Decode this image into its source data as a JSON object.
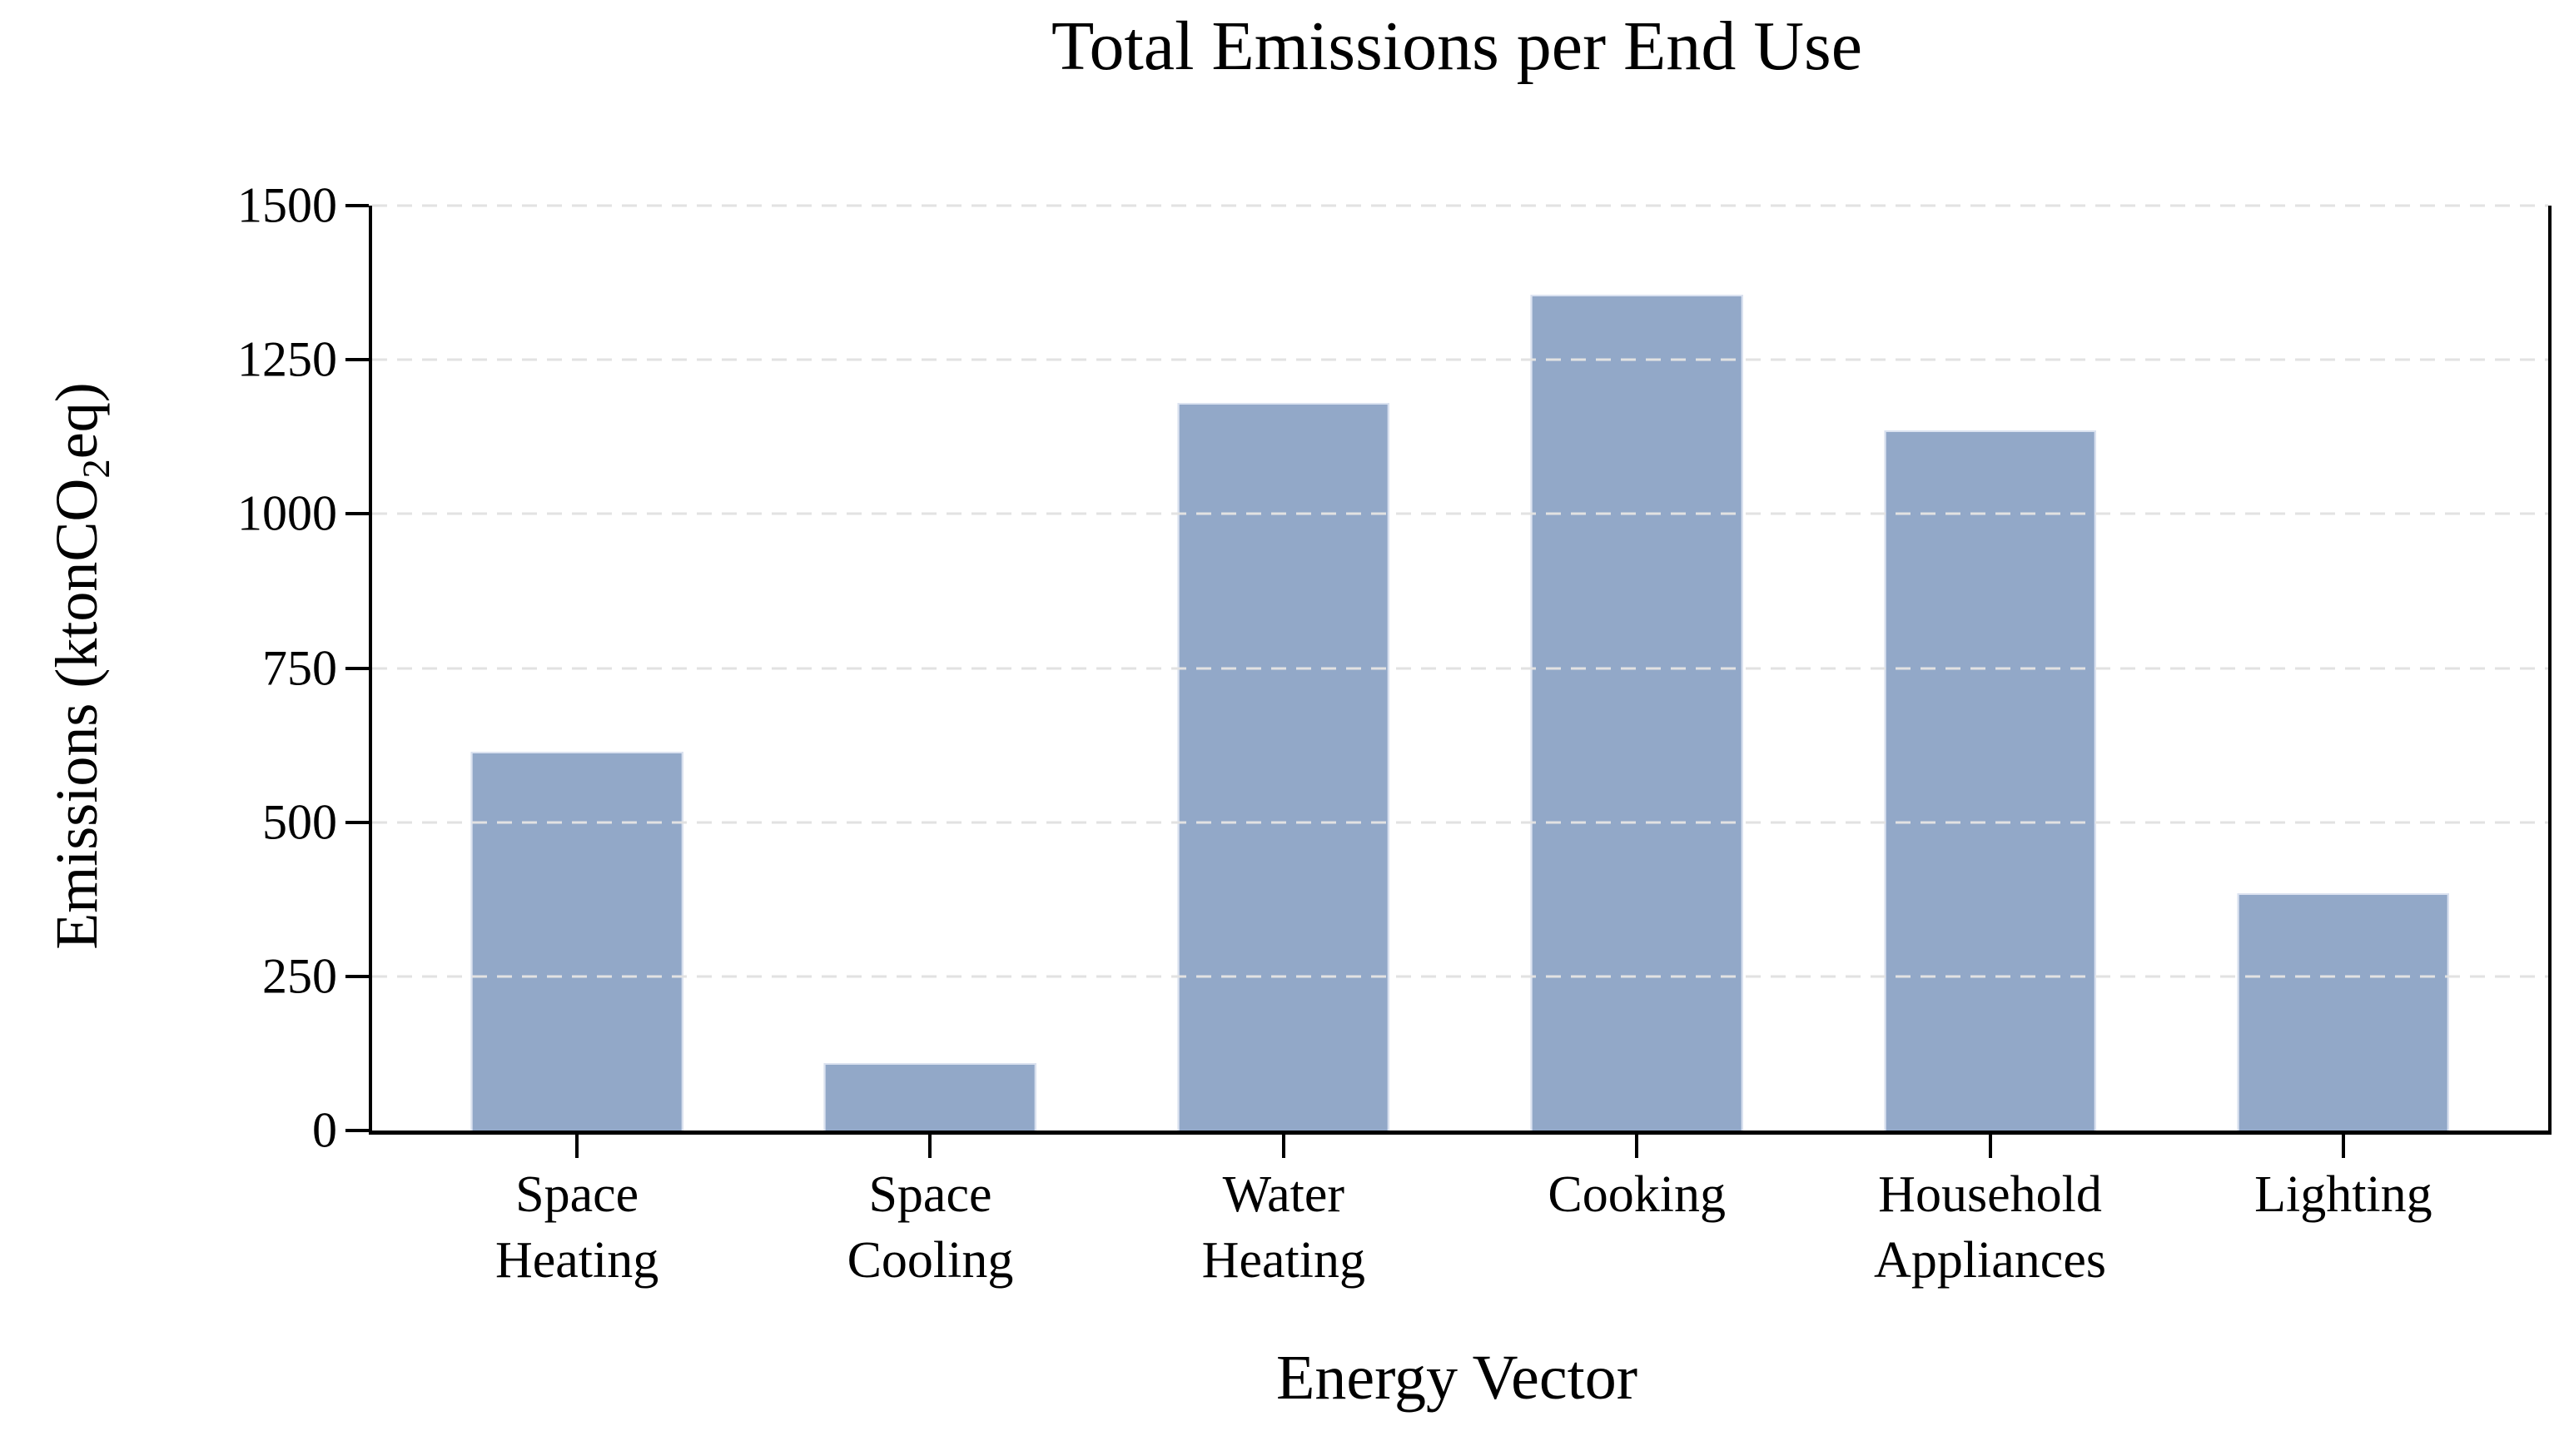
{
  "title": "Total Emissions per End Use",
  "axes": {
    "x_label": "Energy Vector",
    "y_label": "Emissions (ktonCO2eq)",
    "y_label_prefix": "Emissions (ktonCO",
    "y_label_sub": "2",
    "y_label_suffix": "eq)"
  },
  "style": {
    "bar_color": "#92a8c8",
    "bar_edge_color": "#dbe2f0",
    "grid_color": "#e2e2e2",
    "axis_color": "#000000",
    "background": "#ffffff"
  },
  "chart_data": {
    "type": "bar",
    "title": "Total Emissions per End Use",
    "xlabel": "Energy Vector",
    "ylabel": "Emissions (ktonCO2eq)",
    "categories": [
      "Space Heating",
      "Space Cooling",
      "Water Heating",
      "Cooking",
      "Household Appliances",
      "Lighting"
    ],
    "category_lines": [
      [
        "Space",
        "Heating"
      ],
      [
        "Space",
        "Cooling"
      ],
      [
        "Water",
        "Heating"
      ],
      [
        "Cooking"
      ],
      [
        "Household",
        "Appliances"
      ],
      [
        "Lighting"
      ]
    ],
    "values": [
      615,
      110,
      1180,
      1355,
      1135,
      385
    ],
    "ylim": [
      0,
      1500
    ],
    "yticks": [
      0,
      250,
      500,
      750,
      1000,
      1250,
      1500
    ],
    "grid": "horizontal dashed, drawn over bars",
    "legend": false,
    "bar_color": "#92a8c8"
  }
}
